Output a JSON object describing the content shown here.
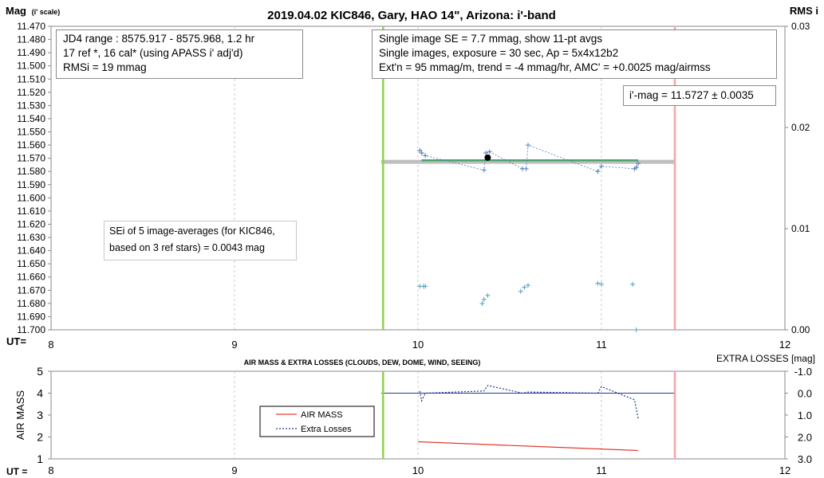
{
  "chart_data": [
    {
      "type": "scatter",
      "title": "2019.04.02 KIC846, Gary, HAO 14\", Arizona: i'-band",
      "ylabel_main": "Mag",
      "ylabel_sub": "(i' scale)",
      "y2label": "RMS i",
      "xlabel": "UT=",
      "xlim": [
        8,
        12
      ],
      "ylim": [
        11.47,
        11.7
      ],
      "y_reversed": true,
      "y2lim": [
        0.0,
        0.03
      ],
      "x_ticks": [
        "8",
        "9",
        "10",
        "11",
        "12"
      ],
      "y_ticks": [
        "11.470",
        "11.480",
        "11.490",
        "11.500",
        "11.510",
        "11.520",
        "11.530",
        "11.540",
        "11.550",
        "11.560",
        "11.570",
        "11.580",
        "11.590",
        "11.600",
        "11.610",
        "11.620",
        "11.630",
        "11.640",
        "11.650",
        "11.660",
        "11.670",
        "11.680",
        "11.690",
        "11.700"
      ],
      "y2_ticks": [
        "0.03",
        "0.02",
        "0.01",
        "0.00"
      ],
      "grid_x": true,
      "series": [
        {
          "color": "#4f81bd",
          "points": [
            [
              10.01,
              11.564
            ],
            [
              10.02,
              11.566
            ],
            [
              10.04,
              11.568
            ],
            [
              10.36,
              11.579
            ],
            [
              10.37,
              11.566
            ],
            [
              10.39,
              11.565
            ],
            [
              10.57,
              11.578
            ],
            [
              10.59,
              11.578
            ],
            [
              10.6,
              11.56
            ],
            [
              10.98,
              11.58
            ],
            [
              11.0,
              11.576
            ],
            [
              11.18,
              11.578
            ],
            [
              11.19,
              11.577
            ],
            [
              11.2,
              11.574
            ]
          ]
        },
        {
          "color": "#4fa0c0",
          "y_axis": "right",
          "points": [
            [
              10.01,
              0.0043
            ],
            [
              10.03,
              0.0043
            ],
            [
              10.04,
              0.0043
            ],
            [
              10.35,
              0.0026
            ],
            [
              10.36,
              0.003
            ],
            [
              10.38,
              0.0034
            ],
            [
              10.56,
              0.0038
            ],
            [
              10.58,
              0.0042
            ],
            [
              10.6,
              0.0044
            ],
            [
              10.98,
              0.0046
            ],
            [
              11.0,
              0.0045
            ],
            [
              11.17,
              0.0045
            ],
            [
              11.19,
              0.0
            ]
          ]
        }
      ],
      "mean_point": [
        10.38,
        11.5695
      ],
      "mean_line": {
        "value": 11.5727,
        "x": [
          9.8,
          11.4
        ],
        "color": "#bfbfbf"
      },
      "trend_line": {
        "x": [
          10.02,
          11.2
        ],
        "y": [
          11.5716,
          11.5716
        ],
        "color": "#4aa36c"
      },
      "vlines": [
        {
          "x": 9.81,
          "color": "#92d050"
        },
        {
          "x": 11.4,
          "color": "#f4a6a6"
        }
      ],
      "annotations": {
        "left_box": [
          "JD4 range : 8575.917 - 8575.968, 1.2  hr",
          "17 ref *, 16 cal* (using APASS i' adj'd)",
          "RMSi = 19 mmag"
        ],
        "center_box": [
          "Single image SE = 7.7 mmag, show 11-pt avgs",
          "Single images, exposure = 30 sec, Ap = 5x4x12b2",
          "Ext'n = 95 mmag/m, trend = -4 mmag/hr, AMC' = +0.0025 mag/airmss"
        ],
        "mag_box": "i'-mag = 11.5727 ± 0.0035",
        "sei_box": [
          "SEi of 5 image-averages (for KIC846,",
          "based on 3 ref stars) = 0.0043 mag"
        ]
      }
    },
    {
      "type": "line",
      "title": "AIR MASS & EXTRA LOSSES (CLOUDS, DEW, DOME, WIND, SEEING)",
      "ylabel": "AIR MASS",
      "y2label": "EXTRA LOSSES [mag]",
      "xlabel": "UT =",
      "xlim": [
        8,
        12
      ],
      "ylim": [
        1,
        5
      ],
      "y2lim": [
        -1.0,
        3.0
      ],
      "y2_reversed": true,
      "x_ticks": [
        "8",
        "9",
        "10",
        "11",
        "12"
      ],
      "y_ticks": [
        "5",
        "4",
        "3",
        "2",
        "1"
      ],
      "y2_ticks": [
        "-1.0",
        "0.0",
        "1.0",
        "2.0",
        "3.0"
      ],
      "grid_x": true,
      "legend": {
        "placement": "left",
        "items": [
          {
            "name": "AIR MASS",
            "color": "#e03c31",
            "style": "solid"
          },
          {
            "name": "Extra Losses",
            "color": "#1f3a93",
            "style": "dotted"
          }
        ]
      },
      "series": [
        {
          "name": "AIR MASS",
          "color": "#e03c31",
          "x": [
            10.0,
            10.6,
            11.2
          ],
          "y": [
            1.78,
            1.58,
            1.38
          ]
        },
        {
          "name": "Extra Losses",
          "color": "#1f3a93",
          "y_axis": "right",
          "x": [
            10.01,
            10.02,
            10.04,
            10.36,
            10.38,
            10.57,
            10.6,
            10.98,
            11.0,
            11.18,
            11.2
          ],
          "y": [
            -0.1,
            0.35,
            0.0,
            -0.1,
            -0.35,
            0.0,
            -0.05,
            0.0,
            -0.3,
            0.3,
            1.15
          ]
        }
      ],
      "zero_line": {
        "value": 0.0,
        "color": "#1f3a93"
      },
      "vlines": [
        {
          "x": 9.81,
          "color": "#92d050"
        },
        {
          "x": 11.4,
          "color": "#f4a6a6"
        }
      ]
    }
  ]
}
